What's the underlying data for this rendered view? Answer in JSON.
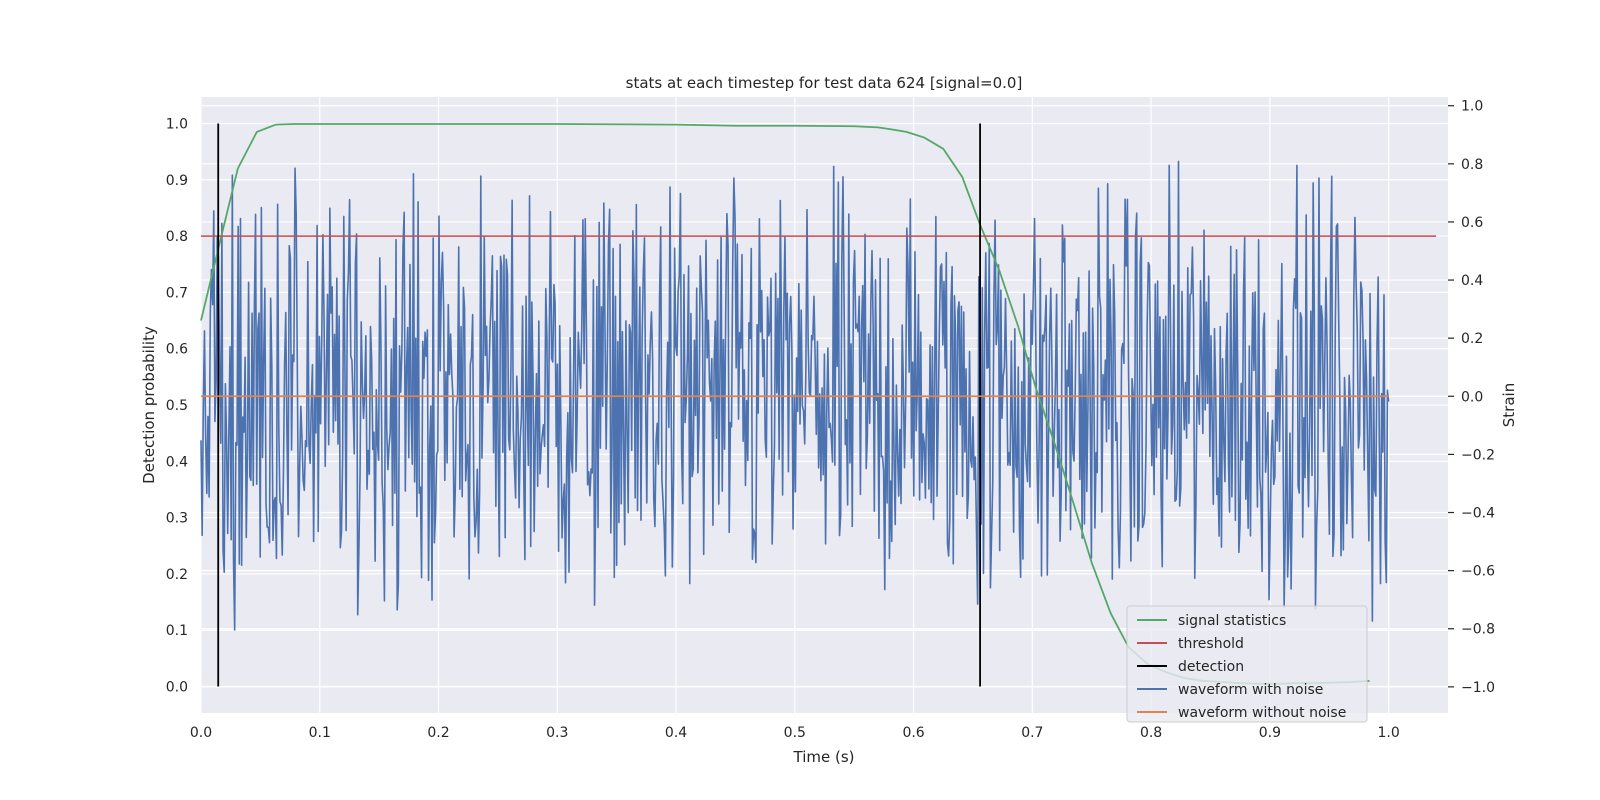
{
  "chart_data": {
    "type": "line",
    "title": "stats at each timestep for test data 624 [signal=0.0]",
    "xlabel": "Time (s)",
    "ylabel": "Detection probability",
    "y2label": "Strain",
    "xlim": [
      0.0,
      1.05
    ],
    "ylim": [
      -0.047,
      1.047
    ],
    "y2lim": [
      -1.09,
      1.03
    ],
    "xticks": [
      "0.0",
      "0.1",
      "0.2",
      "0.3",
      "0.4",
      "0.5",
      "0.6",
      "0.7",
      "0.8",
      "0.9",
      "1.0"
    ],
    "yticks": [
      "0.0",
      "0.1",
      "0.2",
      "0.3",
      "0.4",
      "0.5",
      "0.6",
      "0.7",
      "0.8",
      "0.9",
      "1.0"
    ],
    "y2ticks": [
      "−1.0",
      "−0.8",
      "−0.6",
      "−0.4",
      "−0.2",
      "0.0",
      "0.2",
      "0.4",
      "0.6",
      "0.8",
      "1.0"
    ],
    "grid": true,
    "legend_position": "lower-right",
    "series": [
      {
        "name": "signal statistics",
        "axis": "left",
        "color": "#55a868",
        "x": [
          0.0,
          0.016,
          0.031,
          0.047,
          0.063,
          0.078,
          0.1,
          0.2,
          0.3,
          0.4,
          0.45,
          0.5,
          0.55,
          0.57,
          0.58,
          0.594,
          0.609,
          0.625,
          0.641,
          0.656,
          0.672,
          0.688,
          0.703,
          0.719,
          0.734,
          0.75,
          0.766,
          0.781,
          0.797,
          0.813,
          0.828,
          0.844,
          0.859,
          0.875,
          0.891,
          0.906,
          0.922,
          0.938,
          0.953,
          0.969,
          0.984
        ],
        "y": [
          0.65,
          0.79,
          0.92,
          0.985,
          0.998,
          0.999,
          0.999,
          0.999,
          0.999,
          0.998,
          0.996,
          0.996,
          0.995,
          0.993,
          0.99,
          0.985,
          0.975,
          0.955,
          0.905,
          0.82,
          0.74,
          0.64,
          0.53,
          0.43,
          0.33,
          0.22,
          0.13,
          0.07,
          0.04,
          0.025,
          0.015,
          0.01,
          0.008,
          0.006,
          0.005,
          0.005,
          0.006,
          0.006,
          0.007,
          0.008,
          0.01
        ]
      },
      {
        "name": "threshold",
        "axis": "left",
        "color": "#c44e52",
        "x": [
          0.0,
          1.04
        ],
        "y": [
          0.8,
          0.8
        ]
      },
      {
        "name": "detection",
        "axis": "left",
        "color": "#000000",
        "x": [
          0.0145,
          0.656
        ],
        "y": [
          0.0,
          1.0
        ]
      },
      {
        "name": "waveform with noise",
        "axis": "right",
        "color": "#4c72b0",
        "x_range": [
          0.0,
          1.0
        ],
        "y_range": [
          -1.0,
          1.0
        ],
        "n_points": 1024
      },
      {
        "name": "waveform without noise",
        "axis": "right",
        "color": "#dd8452",
        "x": [
          0.0,
          1.0
        ],
        "y": [
          0.0,
          0.0
        ]
      }
    ]
  }
}
